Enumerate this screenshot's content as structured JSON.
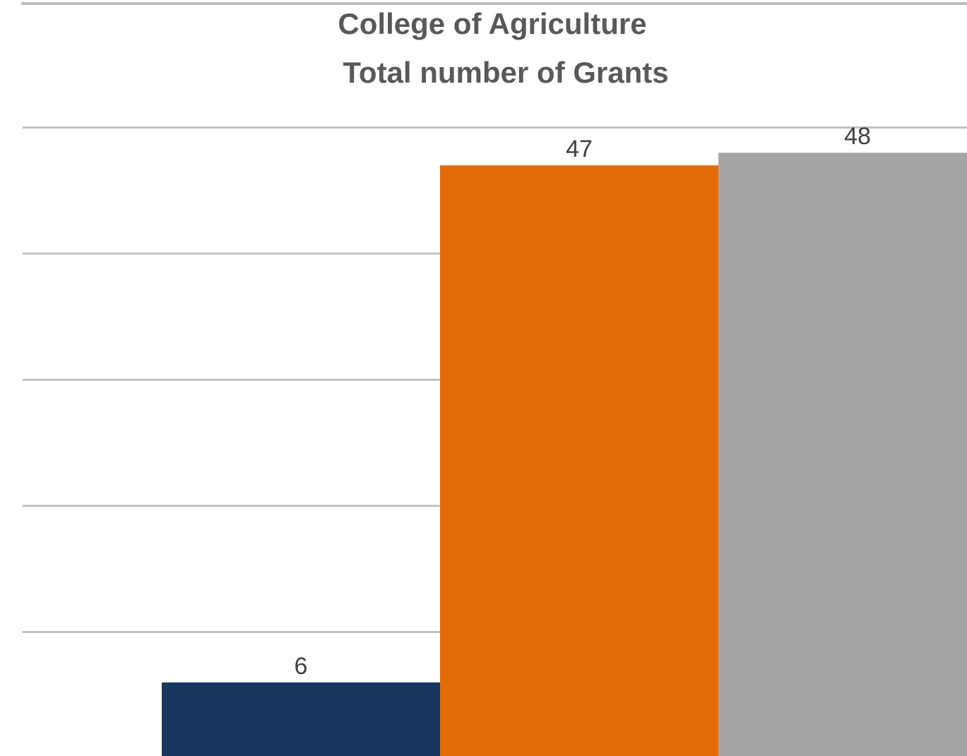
{
  "chart_data": {
    "type": "bar",
    "title": "College of Agriculture",
    "subtitle": "Total number of Grants",
    "xlabel": "",
    "ylabel": "",
    "categories": [
      "",
      "",
      ""
    ],
    "values": [
      6,
      47,
      48
    ],
    "data_labels": [
      "6",
      "47",
      "48"
    ],
    "ylim": [
      0,
      50
    ],
    "y_gridline_step": 10,
    "grid": true,
    "legend": "none",
    "colors": [
      "#17365d",
      "#e36c09",
      "#a5a5a5"
    ],
    "gridline_color": "#bfbfbf"
  }
}
